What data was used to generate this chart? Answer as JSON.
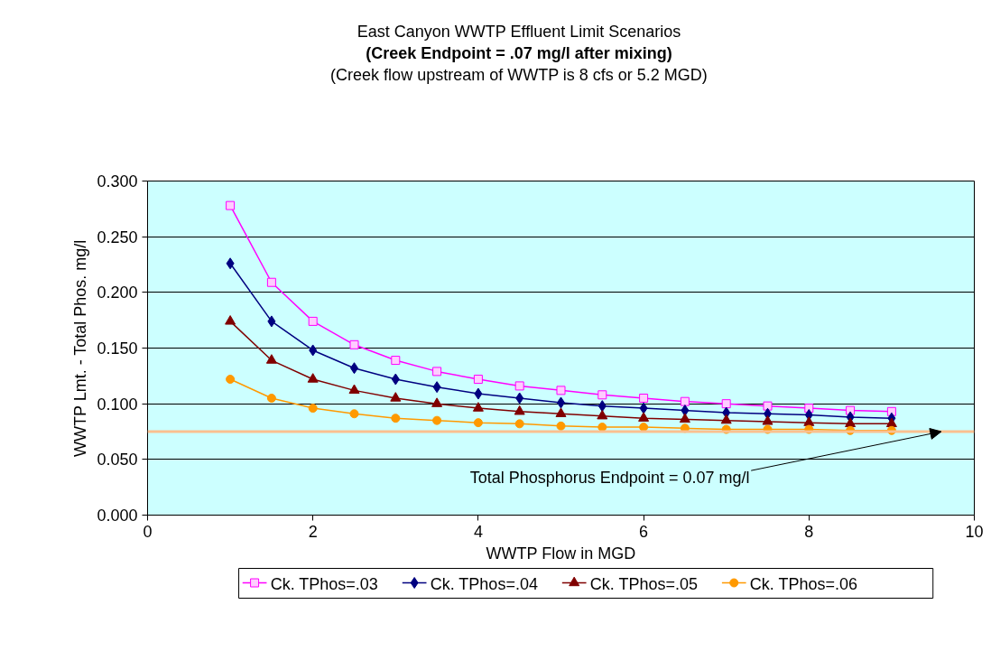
{
  "chart_data": {
    "type": "line",
    "title": "East Canyon WWTP Effluent Limit Scenarios",
    "subtitle": "(Creek Endpoint = .07 mg/l after mixing)\n(Creek flow upstream of WWTP is 8 cfs or 5.2 MGD)",
    "xlabel": "WWTP Flow in MGD",
    "ylabel": "WWTP Lmt. - Total Phos. mg/l",
    "x": [
      1,
      1.5,
      2,
      2.5,
      3,
      3.5,
      4,
      4.5,
      5,
      5.5,
      6,
      6.5,
      7,
      7.5,
      8,
      8.5,
      9
    ],
    "series": [
      {
        "name": "Ck.  TPhos=.03",
        "color": "#ff00ff",
        "marker": "square",
        "values": [
          0.278,
          0.209,
          0.174,
          0.153,
          0.139,
          0.129,
          0.122,
          0.116,
          0.112,
          0.108,
          0.105,
          0.102,
          0.1,
          0.098,
          0.096,
          0.094,
          0.093
        ]
      },
      {
        "name": "Ck.  TPhos=.04",
        "color": "#000080",
        "marker": "diamond",
        "values": [
          0.226,
          0.174,
          0.148,
          0.132,
          0.122,
          0.115,
          0.109,
          0.105,
          0.101,
          0.098,
          0.096,
          0.094,
          0.092,
          0.091,
          0.09,
          0.088,
          0.087
        ]
      },
      {
        "name": "Ck.  TPhos=.05",
        "color": "#800000",
        "marker": "triangle",
        "values": [
          0.174,
          0.139,
          0.122,
          0.112,
          0.105,
          0.1,
          0.096,
          0.093,
          0.091,
          0.089,
          0.087,
          0.086,
          0.085,
          0.084,
          0.083,
          0.082,
          0.082
        ]
      },
      {
        "name": "Ck.  TPhos=.06",
        "color": "#ff9900",
        "marker": "circle",
        "values": [
          0.122,
          0.105,
          0.096,
          0.091,
          0.087,
          0.085,
          0.083,
          0.082,
          0.08,
          0.079,
          0.079,
          0.078,
          0.077,
          0.077,
          0.077,
          0.076,
          0.076
        ]
      }
    ],
    "xlim": [
      0,
      10
    ],
    "xticks": [
      0,
      2,
      4,
      6,
      8,
      10
    ],
    "ylim": [
      0,
      0.3
    ],
    "yticks": [
      {
        "value": 0,
        "label": "0.000"
      },
      {
        "value": 0.05,
        "label": "0.050"
      },
      {
        "value": 0.1,
        "label": "0.100"
      },
      {
        "value": 0.15,
        "label": "0.150"
      },
      {
        "value": 0.2,
        "label": "0.200"
      },
      {
        "value": 0.25,
        "label": "0.250"
      },
      {
        "value": 0.3,
        "label": "0.300"
      }
    ],
    "ref_lines": [
      {
        "axis": "y",
        "value": 0.075,
        "color": "#fac090",
        "label": "Total Phosphorus Endpoint = 0.07 mg/l"
      }
    ],
    "grid": "y",
    "legend": "bottom",
    "line_style": "solid"
  }
}
